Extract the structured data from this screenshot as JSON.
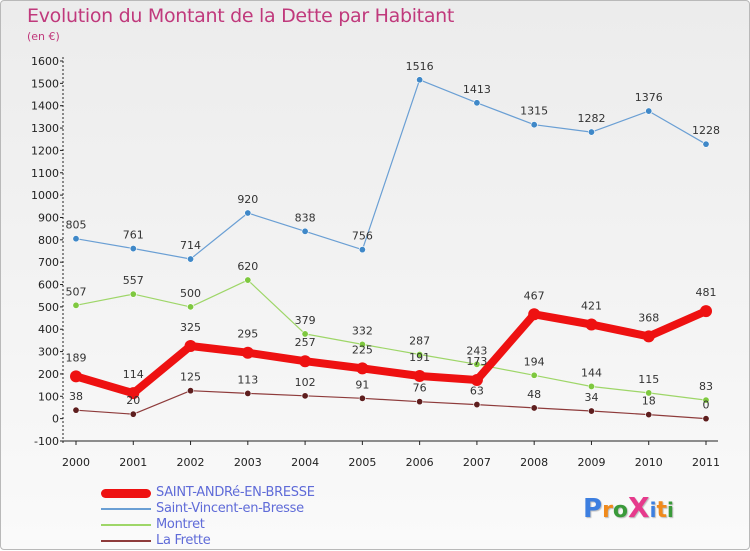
{
  "header": {
    "title": "Evolution du Montant de la Dette par Habitant",
    "subtitle": "(en €)"
  },
  "logo": {
    "text": "ProXiti",
    "letter_colors": [
      "#3d7fe0",
      "#f08a1c",
      "#3a9a3a",
      "#e63a8c",
      "#3d7fe0",
      "#f08a1c",
      "#3a9a3a"
    ]
  },
  "chart_data": {
    "type": "line",
    "title": "Evolution du Montant de la Dette par Habitant",
    "subtitle": "(en €)",
    "xlabel": "",
    "ylabel": "",
    "x": [
      "2000",
      "2001",
      "2002",
      "2003",
      "2004",
      "2005",
      "2006",
      "2007",
      "2008",
      "2009",
      "2010",
      "2011"
    ],
    "ylim": [
      -100,
      1600
    ],
    "yticks": [
      "-100",
      "0",
      "100",
      "200",
      "300",
      "400",
      "500",
      "600",
      "700",
      "800",
      "900",
      "1000",
      "1100",
      "1200",
      "1300",
      "1400",
      "1500",
      "1600"
    ],
    "grid": false,
    "legend_position": "bottom-left",
    "series": [
      {
        "name": "Saint-Vincent-en-Bresse",
        "color": "#6a9fd4",
        "marker_color": "#3f88c8",
        "values": [
          805,
          761,
          714,
          920,
          838,
          756,
          1516,
          1413,
          1315,
          1282,
          1376,
          1228
        ],
        "labels": [
          "805",
          "761",
          "714",
          "920",
          "838",
          "756",
          "1516",
          "1413",
          "1315",
          "1282",
          "1376",
          "1228"
        ]
      },
      {
        "name": "Montret",
        "color": "#9ed668",
        "marker_color": "#7ec83f",
        "values": [
          507,
          557,
          500,
          620,
          379,
          332,
          287,
          243,
          194,
          144,
          115,
          83
        ],
        "labels": [
          "507",
          "557",
          "500",
          "620",
          "379",
          "332",
          "287",
          "243",
          "194",
          "144",
          "115",
          "83"
        ]
      },
      {
        "name": "SAINT-ANDRé-EN-BRESSE",
        "color": "#ee1111",
        "marker_color": "#ee1111",
        "emphasis": true,
        "values": [
          189,
          114,
          325,
          295,
          257,
          225,
          191,
          173,
          467,
          421,
          368,
          481
        ],
        "labels": [
          "189",
          "114",
          "325",
          "295",
          "257",
          "225",
          "191",
          "173",
          "467",
          "421",
          "368",
          "481"
        ]
      },
      {
        "name": "La Frette",
        "color": "#8e3b3b",
        "marker_color": "#5e1e1e",
        "values": [
          38,
          20,
          125,
          113,
          102,
          91,
          76,
          63,
          48,
          34,
          18,
          0
        ],
        "labels": [
          "38",
          "20",
          "125",
          "113",
          "102",
          "91",
          "76",
          "63",
          "48",
          "34",
          "18",
          "0"
        ]
      }
    ],
    "legend": [
      {
        "name": "SAINT-ANDRé-EN-BRESSE",
        "color": "#ee1111",
        "emphasis": true
      },
      {
        "name": "Saint-Vincent-en-Bresse",
        "color": "#6a9fd4",
        "emphasis": false
      },
      {
        "name": "Montret",
        "color": "#9ed668",
        "emphasis": false
      },
      {
        "name": "La Frette",
        "color": "#8e3b3b",
        "emphasis": false
      }
    ]
  }
}
